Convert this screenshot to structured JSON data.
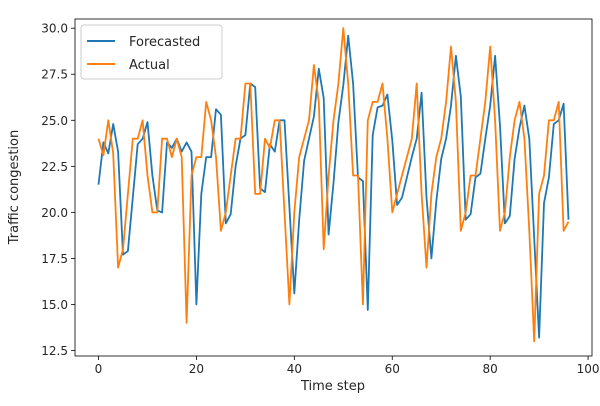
{
  "chart_data": {
    "type": "line",
    "title": "",
    "xlabel": "Time step",
    "ylabel": "Traffic congestion",
    "xlim": [
      -4.8,
      100.8
    ],
    "ylim": [
      12.2,
      30.5
    ],
    "xticks": [
      0,
      20,
      40,
      60,
      80,
      100
    ],
    "xtick_labels": [
      "0",
      "20",
      "40",
      "60",
      "80",
      "100"
    ],
    "yticks": [
      12.5,
      15.0,
      17.5,
      20.0,
      22.5,
      25.0,
      27.5,
      30.0
    ],
    "ytick_labels": [
      "12.5",
      "15.0",
      "17.5",
      "20.0",
      "22.5",
      "25.0",
      "27.5",
      "30.0"
    ],
    "grid": false,
    "legend_position": "top-left",
    "x": [
      0,
      1,
      2,
      3,
      4,
      5,
      6,
      7,
      8,
      9,
      10,
      11,
      12,
      13,
      14,
      15,
      16,
      17,
      18,
      19,
      20,
      21,
      22,
      23,
      24,
      25,
      26,
      27,
      28,
      29,
      30,
      31,
      32,
      33,
      34,
      35,
      36,
      37,
      38,
      39,
      40,
      41,
      42,
      43,
      44,
      45,
      46,
      47,
      48,
      49,
      50,
      51,
      52,
      53,
      54,
      55,
      56,
      57,
      58,
      59,
      60,
      61,
      62,
      63,
      64,
      65,
      66,
      67,
      68,
      69,
      70,
      71,
      72,
      73,
      74,
      75,
      76,
      77,
      78,
      79,
      80,
      81,
      82,
      83,
      84,
      85,
      86,
      87,
      88,
      89,
      90,
      91,
      92,
      93,
      94,
      95,
      96
    ],
    "series": [
      {
        "name": "Forecasted",
        "color": "#1f77b4",
        "values": [
          21.5,
          23.8,
          23.2,
          24.8,
          23.3,
          17.7,
          17.9,
          20.8,
          23.7,
          24.0,
          24.9,
          22.0,
          20.1,
          20.0,
          23.8,
          23.5,
          24.0,
          23.3,
          23.8,
          23.3,
          15.0,
          21.0,
          23.0,
          23.0,
          25.6,
          25.3,
          19.4,
          19.9,
          22.5,
          24.0,
          24.2,
          27.0,
          26.8,
          21.3,
          21.1,
          23.7,
          23.3,
          25.0,
          25.0,
          20.3,
          15.6,
          19.6,
          22.8,
          24.0,
          25.2,
          27.8,
          26.2,
          18.8,
          21.6,
          24.9,
          26.9,
          29.6,
          27.0,
          21.9,
          21.7,
          14.7,
          24.2,
          25.7,
          25.8,
          26.4,
          23.9,
          20.4,
          20.8,
          21.9,
          23.0,
          24.0,
          26.5,
          20.8,
          17.5,
          20.6,
          22.9,
          24.0,
          25.8,
          28.5,
          26.3,
          19.6,
          19.9,
          21.9,
          22.1,
          24.0,
          25.8,
          28.5,
          24.7,
          19.4,
          19.8,
          22.9,
          24.6,
          25.8,
          24.0,
          18.6,
          13.2,
          20.5,
          21.9,
          24.8,
          25.0,
          25.9,
          19.6
        ]
      },
      {
        "name": "Actual",
        "color": "#ff7f0e",
        "values": [
          24.0,
          23.1,
          25.0,
          23.2,
          17.0,
          18.0,
          21.0,
          24.0,
          24.0,
          25.0,
          22.0,
          20.0,
          20.0,
          24.0,
          24.0,
          23.0,
          24.0,
          23.0,
          14.0,
          22.0,
          23.0,
          23.0,
          26.0,
          25.0,
          23.0,
          19.0,
          20.0,
          22.0,
          24.0,
          24.0,
          27.0,
          27.0,
          21.0,
          21.0,
          24.0,
          23.5,
          25.0,
          25.0,
          20.0,
          15.0,
          20.0,
          23.0,
          24.0,
          25.0,
          28.0,
          26.0,
          18.0,
          22.0,
          25.0,
          27.0,
          30.0,
          27.0,
          22.0,
          22.0,
          15.0,
          25.0,
          26.0,
          26.0,
          27.0,
          24.0,
          20.0,
          21.0,
          22.0,
          23.0,
          24.0,
          27.0,
          21.0,
          17.0,
          21.0,
          23.0,
          24.0,
          26.0,
          29.0,
          26.0,
          19.0,
          20.0,
          22.0,
          22.0,
          24.0,
          26.0,
          29.0,
          25.0,
          19.0,
          20.0,
          23.0,
          25.0,
          26.0,
          24.0,
          19.0,
          13.0,
          21.0,
          22.0,
          25.0,
          25.0,
          26.0,
          19.0,
          19.5
        ]
      }
    ]
  }
}
